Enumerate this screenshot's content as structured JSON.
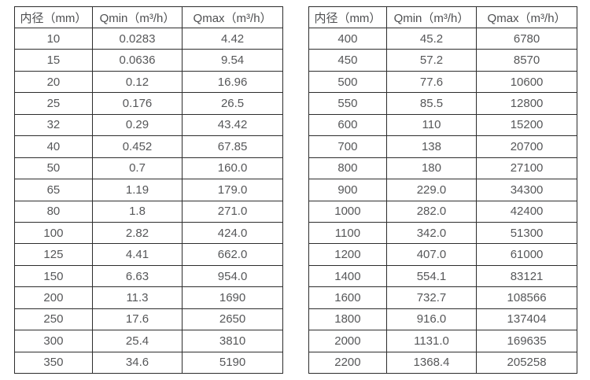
{
  "tables": [
    {
      "name": "flow-spec-table-small-diameters",
      "headers": [
        "内径（mm）",
        "Qmin（m³/h）",
        "Qmax（m³/h）"
      ],
      "rows": [
        [
          "10",
          "0.0283",
          "4.42"
        ],
        [
          "15",
          "0.0636",
          "9.54"
        ],
        [
          "20",
          "0.12",
          "16.96"
        ],
        [
          "25",
          "0.176",
          "26.5"
        ],
        [
          "32",
          "0.29",
          "43.42"
        ],
        [
          "40",
          "0.452",
          "67.85"
        ],
        [
          "50",
          "0.7",
          "160.0"
        ],
        [
          "65",
          "1.19",
          "179.0"
        ],
        [
          "80",
          "1.8",
          "271.0"
        ],
        [
          "100",
          "2.82",
          "424.0"
        ],
        [
          "125",
          "4.41",
          "662.0"
        ],
        [
          "150",
          "6.63",
          "954.0"
        ],
        [
          "200",
          "11.3",
          "1690"
        ],
        [
          "250",
          "17.6",
          "2650"
        ],
        [
          "300",
          "25.4",
          "3810"
        ],
        [
          "350",
          "34.6",
          "5190"
        ]
      ]
    },
    {
      "name": "flow-spec-table-large-diameters",
      "headers": [
        "内径（mm）",
        "Qmin（m³/h）",
        "Qmax（m³/h）"
      ],
      "rows": [
        [
          "400",
          "45.2",
          "6780"
        ],
        [
          "450",
          "57.2",
          "8570"
        ],
        [
          "500",
          "77.6",
          "10600"
        ],
        [
          "550",
          "85.5",
          "12800"
        ],
        [
          "600",
          "110",
          "15200"
        ],
        [
          "700",
          "138",
          "20700"
        ],
        [
          "800",
          "180",
          "27100"
        ],
        [
          "900",
          "229.0",
          "34300"
        ],
        [
          "1000",
          "282.0",
          "42400"
        ],
        [
          "1100",
          "342.0",
          "51300"
        ],
        [
          "1200",
          "407.0",
          "61000"
        ],
        [
          "1400",
          "554.1",
          "83121"
        ],
        [
          "1600",
          "732.7",
          "108566"
        ],
        [
          "1800",
          "916.0",
          "137404"
        ],
        [
          "2000",
          "1131.0",
          "169635"
        ],
        [
          "2200",
          "1368.4",
          "205258"
        ]
      ]
    }
  ],
  "colors": {
    "border": "#2d2d2d",
    "text": "#565759",
    "background": "#ffffff"
  }
}
